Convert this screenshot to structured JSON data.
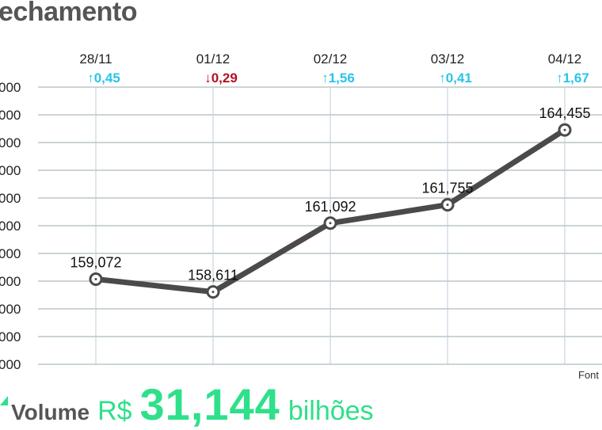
{
  "title": "echamento",
  "source_label": "Font",
  "footer": {
    "label": "Volume",
    "currency": "R$",
    "value": "31,144",
    "unit": "bilhões",
    "accent": "#2ee08a"
  },
  "colors": {
    "up": "#29c4ea",
    "down": "#b3121d",
    "line": "#4a4a4a",
    "grid": "#9aa"
  },
  "chart_data": {
    "type": "line",
    "categories": [
      "28/11",
      "01/12",
      "02/12",
      "03/12",
      "04/12"
    ],
    "values": [
      159.072,
      158.611,
      161.092,
      161.755,
      164.455
    ],
    "data_labels": [
      "159,072",
      "158,611",
      "161,092",
      "161,755",
      "164,455"
    ],
    "changes": [
      {
        "dir": "up",
        "text": "0,45"
      },
      {
        "dir": "down",
        "text": "0,29"
      },
      {
        "dir": "up",
        "text": "1,56"
      },
      {
        "dir": "up",
        "text": "0,41"
      },
      {
        "dir": "up",
        "text": "1,67"
      }
    ],
    "ylim": [
      156,
      166
    ],
    "yticks": [
      166,
      165,
      164,
      163,
      162,
      161,
      160,
      159,
      158,
      157,
      156
    ],
    "ytick_labels": [
      "000",
      "000",
      "000",
      "000",
      "000",
      "000",
      "000",
      "000",
      "000",
      "000",
      "000"
    ],
    "grid": true
  }
}
